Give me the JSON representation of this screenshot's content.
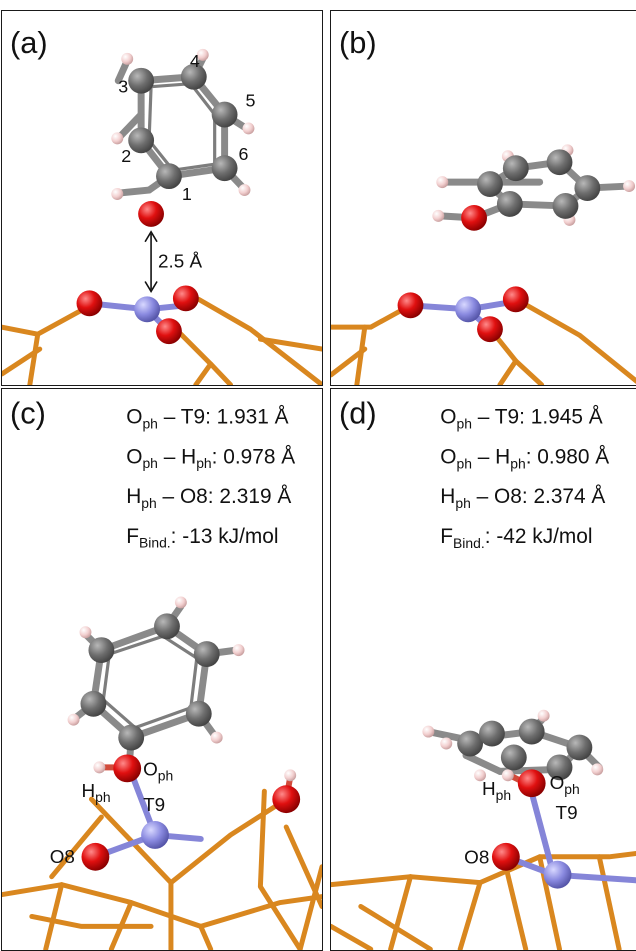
{
  "panels": {
    "a": {
      "label": "(a)",
      "atom_numbers": [
        "1",
        "2",
        "3",
        "4",
        "5",
        "6"
      ],
      "distance": "2.5 Å"
    },
    "b": {
      "label": "(b)"
    },
    "c": {
      "label": "(c)",
      "metrics": [
        {
          "base": "O",
          "sub": "ph",
          "mid": " – T9:  ",
          "sub2": "",
          "value": "1.931 Å"
        },
        {
          "base": "O",
          "sub": "ph",
          "mid": " – H",
          "sub2": "ph",
          "value": ":  0.978 Å"
        },
        {
          "base": "H",
          "sub": "ph",
          "mid": " – O8:  ",
          "sub2": "",
          "value": "2.319 Å"
        },
        {
          "base": "F",
          "sub": "Bind.",
          "mid": ":  ",
          "sub2": "",
          "value": "-13 kJ/mol"
        }
      ],
      "atom_labels": {
        "oph": "O",
        "oph_sub": "ph",
        "hph": "H",
        "hph_sub": "ph",
        "t9": "T9",
        "o8": "O8"
      }
    },
    "d": {
      "label": "(d)",
      "metrics": [
        {
          "base": "O",
          "sub": "ph",
          "mid": " – T9:  ",
          "sub2": "",
          "value": "1.945 Å"
        },
        {
          "base": "O",
          "sub": "ph",
          "mid": " – H",
          "sub2": "ph",
          "value": ":  0.980 Å"
        },
        {
          "base": "H",
          "sub": "ph",
          "mid": " – O8:  ",
          "sub2": "",
          "value": "2.374 Å"
        },
        {
          "base": "F",
          "sub": "Bind.",
          "mid": ":  ",
          "sub2": "",
          "value": "-42 kJ/mol"
        }
      ],
      "atom_labels": {
        "oph": "O",
        "oph_sub": "ph",
        "hph": "H",
        "hph_sub": "ph",
        "t9": "T9",
        "o8": "O8"
      }
    }
  },
  "colors": {
    "carbon": "#6e6e6e",
    "hydrogen": "#f2cfcf",
    "oxygen": "#e01010",
    "silicon": "#8a8ae0",
    "framework": "#d9871f"
  }
}
